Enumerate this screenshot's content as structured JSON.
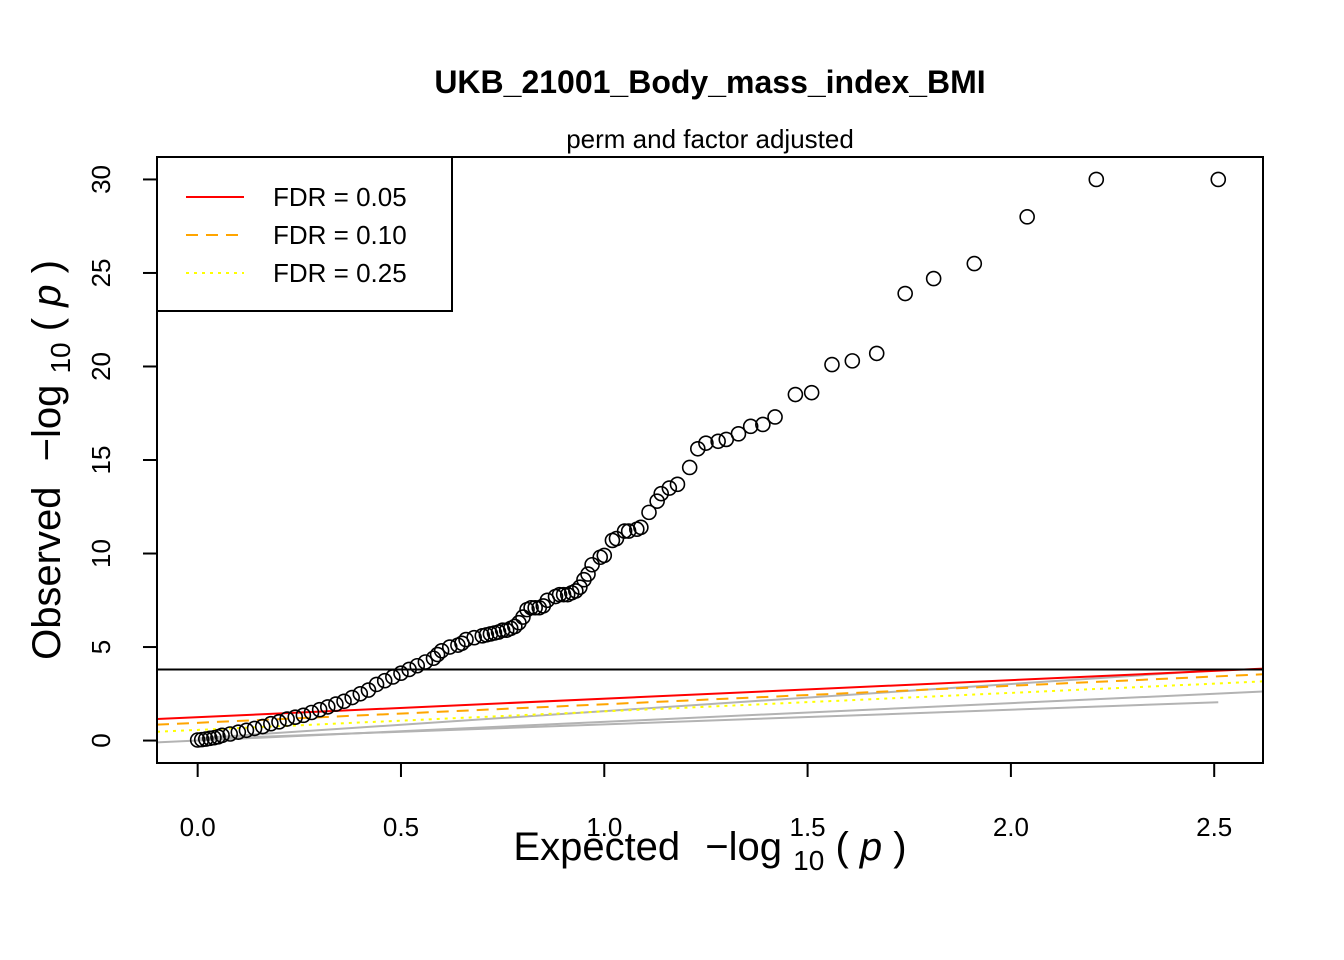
{
  "chart_data": {
    "type": "scatter",
    "title": "UKB_21001_Body_mass_index_BMI",
    "subtitle": "perm and factor adjusted",
    "xlabel": {
      "main": "Expected",
      "log": "−log",
      "sub": "10",
      "var": "p"
    },
    "ylabel": {
      "main": "Observed",
      "log": "−log",
      "sub": "10",
      "var": "p"
    },
    "xlim": [
      -0.1,
      2.62
    ],
    "ylim": [
      -1.2,
      31.2
    ],
    "x_ticks": [
      0.0,
      0.5,
      1.0,
      1.5,
      2.0,
      2.5
    ],
    "x_tick_labels": [
      "0.0",
      "0.5",
      "1.0",
      "1.5",
      "2.0",
      "2.5"
    ],
    "y_ticks": [
      0,
      5,
      10,
      15,
      20,
      25,
      30
    ],
    "y_tick_labels": [
      "0",
      "5",
      "10",
      "15",
      "20",
      "25",
      "30"
    ],
    "legend": {
      "position": "top-left",
      "entries": [
        {
          "label": "FDR = 0.05",
          "color": "#ff0000",
          "dash": "solid"
        },
        {
          "label": "FDR = 0.10",
          "color": "#ffa500",
          "dash": "dashed"
        },
        {
          "label": "FDR = 0.25",
          "color": "#ffff00",
          "dash": "dotted"
        }
      ]
    },
    "threshold_line": {
      "y": 3.8,
      "color": "#000000"
    },
    "fdr_lines": [
      {
        "label": "FDR = 0.05",
        "color": "#ff0000",
        "dash": "solid",
        "y_at_xmin": 1.15,
        "slope": 0.99
      },
      {
        "label": "FDR = 0.10",
        "color": "#ffa500",
        "dash": "dashed",
        "y_at_xmin": 0.85,
        "slope": 0.99
      },
      {
        "label": "FDR = 0.25",
        "color": "#ffff00",
        "dash": "dotted",
        "y_at_xmin": 0.47,
        "slope": 0.99
      }
    ],
    "null_lines": [
      {
        "color": "#b3b3b3",
        "points": [
          [
            -0.1,
            -0.1
          ],
          [
            2.62,
            2.62
          ]
        ]
      },
      {
        "color": "#b3b3b3",
        "points": [
          [
            0.0,
            0.08
          ],
          [
            2.51,
            2.05
          ]
        ]
      },
      {
        "color": "#b3b3b3",
        "points": [
          [
            0.0,
            0.12
          ],
          [
            2.5,
            3.75
          ]
        ]
      }
    ],
    "series": [
      {
        "color": "#000000",
        "points": [
          [
            2.51,
            30.0
          ],
          [
            2.21,
            30.0
          ],
          [
            2.04,
            28.0
          ],
          [
            1.91,
            25.5
          ],
          [
            1.81,
            24.7
          ],
          [
            1.74,
            23.9
          ],
          [
            1.67,
            20.7
          ],
          [
            1.61,
            20.3
          ],
          [
            1.56,
            20.1
          ],
          [
            1.51,
            18.6
          ],
          [
            1.47,
            18.5
          ],
          [
            1.42,
            17.3
          ],
          [
            1.39,
            16.9
          ],
          [
            1.36,
            16.8
          ],
          [
            1.33,
            16.4
          ],
          [
            1.3,
            16.1
          ],
          [
            1.28,
            16.0
          ],
          [
            1.25,
            15.9
          ],
          [
            1.23,
            15.6
          ],
          [
            1.21,
            14.6
          ],
          [
            1.18,
            13.7
          ],
          [
            1.16,
            13.5
          ],
          [
            1.14,
            13.2
          ],
          [
            1.13,
            12.8
          ],
          [
            1.11,
            12.2
          ],
          [
            1.09,
            11.4
          ],
          [
            1.08,
            11.3
          ],
          [
            1.06,
            11.2
          ],
          [
            1.05,
            11.2
          ],
          [
            1.03,
            10.8
          ],
          [
            1.02,
            10.7
          ],
          [
            1.0,
            9.9
          ],
          [
            0.99,
            9.8
          ],
          [
            0.97,
            9.4
          ],
          [
            0.96,
            8.9
          ],
          [
            0.95,
            8.6
          ],
          [
            0.94,
            8.2
          ],
          [
            0.93,
            8.0
          ],
          [
            0.92,
            7.9
          ],
          [
            0.91,
            7.8
          ],
          [
            0.9,
            7.8
          ],
          [
            0.89,
            7.8
          ],
          [
            0.88,
            7.7
          ],
          [
            0.86,
            7.5
          ],
          [
            0.85,
            7.2
          ],
          [
            0.84,
            7.1
          ],
          [
            0.83,
            7.1
          ],
          [
            0.82,
            7.1
          ],
          [
            0.81,
            7.0
          ],
          [
            0.8,
            6.6
          ],
          [
            0.79,
            6.3
          ],
          [
            0.78,
            6.1
          ],
          [
            0.77,
            6.0
          ],
          [
            0.76,
            5.9
          ],
          [
            0.75,
            5.9
          ],
          [
            0.74,
            5.8
          ],
          [
            0.73,
            5.75
          ],
          [
            0.72,
            5.7
          ],
          [
            0.71,
            5.65
          ],
          [
            0.7,
            5.6
          ],
          [
            0.68,
            5.5
          ],
          [
            0.66,
            5.4
          ],
          [
            0.65,
            5.2
          ],
          [
            0.64,
            5.1
          ],
          [
            0.62,
            5.0
          ],
          [
            0.6,
            4.8
          ],
          [
            0.59,
            4.6
          ],
          [
            0.58,
            4.4
          ],
          [
            0.56,
            4.2
          ],
          [
            0.54,
            4.0
          ],
          [
            0.52,
            3.8
          ],
          [
            0.5,
            3.6
          ],
          [
            0.48,
            3.4
          ],
          [
            0.46,
            3.2
          ],
          [
            0.44,
            3.0
          ],
          [
            0.42,
            2.7
          ],
          [
            0.4,
            2.5
          ],
          [
            0.38,
            2.3
          ],
          [
            0.36,
            2.1
          ],
          [
            0.34,
            1.95
          ],
          [
            0.32,
            1.8
          ],
          [
            0.3,
            1.65
          ],
          [
            0.28,
            1.5
          ],
          [
            0.26,
            1.35
          ],
          [
            0.24,
            1.25
          ],
          [
            0.22,
            1.15
          ],
          [
            0.2,
            1.0
          ],
          [
            0.18,
            0.9
          ],
          [
            0.16,
            0.75
          ],
          [
            0.14,
            0.65
          ],
          [
            0.12,
            0.55
          ],
          [
            0.1,
            0.45
          ],
          [
            0.08,
            0.35
          ],
          [
            0.06,
            0.28
          ],
          [
            0.05,
            0.2
          ],
          [
            0.04,
            0.15
          ],
          [
            0.03,
            0.12
          ],
          [
            0.02,
            0.08
          ],
          [
            0.01,
            0.05
          ],
          [
            0.0,
            0.03
          ]
        ]
      }
    ]
  }
}
